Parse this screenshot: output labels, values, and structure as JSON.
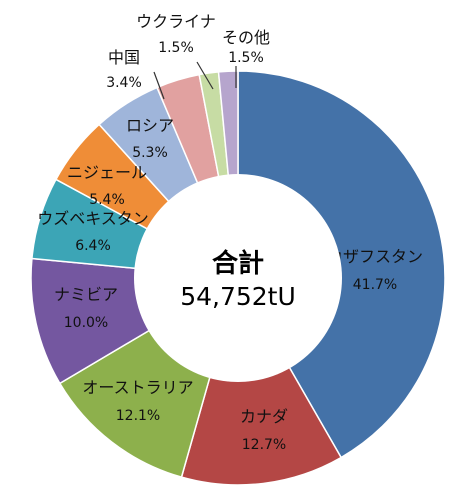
{
  "chart_data": {
    "type": "pie",
    "subtype": "donut",
    "center_label": {
      "title": "合計",
      "total": "54,752tU"
    },
    "slices": [
      {
        "name": "カザフスタン",
        "value": 41.7,
        "label": "41.7%",
        "color": "#4472a8"
      },
      {
        "name": "カナダ",
        "value": 12.7,
        "label": "12.7%",
        "color": "#b44745"
      },
      {
        "name": "オーストラリア",
        "value": 12.1,
        "label": "12.1%",
        "color": "#8db04c"
      },
      {
        "name": "ナミビア",
        "value": 10.0,
        "label": "10.0%",
        "color": "#7457a0"
      },
      {
        "name": "ウズベキスタン",
        "value": 6.4,
        "label": "6.4%",
        "color": "#3ca5b6"
      },
      {
        "name": "ニジェール",
        "value": 5.4,
        "label": "5.4%",
        "color": "#ef8d37"
      },
      {
        "name": "ロシア",
        "value": 5.3,
        "label": "5.3%",
        "color": "#9fb5da"
      },
      {
        "name": "中国",
        "value": 3.4,
        "label": "3.4%",
        "color": "#e1a1a0"
      },
      {
        "name": "ウクライナ",
        "value": 1.5,
        "label": "1.5%",
        "color": "#c7dca4"
      },
      {
        "name": "その他",
        "value": 1.5,
        "label": "1.5%",
        "color": "#b6a5cd"
      }
    ],
    "legend": "none"
  }
}
